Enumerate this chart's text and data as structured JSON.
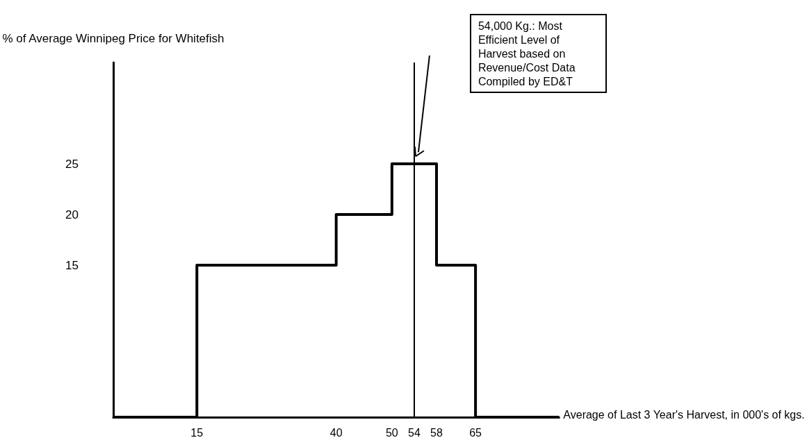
{
  "chart_data": {
    "type": "step",
    "ylabel": "% of Average Winnipeg Price for Whitefish",
    "xlabel": "Average of Last 3 Year's Harvest, in 000's of kgs.",
    "x": [
      0,
      15,
      40,
      50,
      58,
      65,
      80
    ],
    "series": [
      {
        "color": "#000000",
        "values": [
          0,
          15,
          20,
          25,
          15,
          0,
          0
        ]
      }
    ],
    "xlim": [
      0,
      80
    ],
    "xticks": [
      15,
      40,
      50,
      54,
      58,
      65
    ],
    "ylim": [
      0,
      35
    ],
    "yticks": [
      15,
      20,
      25
    ],
    "ref_lines": [
      {
        "axis": "x",
        "value": 54,
        "label": "54,000 Kg.: Most Efficient Level of Harvest based on Revenue/Cost Data Compiled by ED&T",
        "color": "#000000"
      }
    ],
    "grid": false,
    "marker": "none",
    "line_style": "solid"
  }
}
